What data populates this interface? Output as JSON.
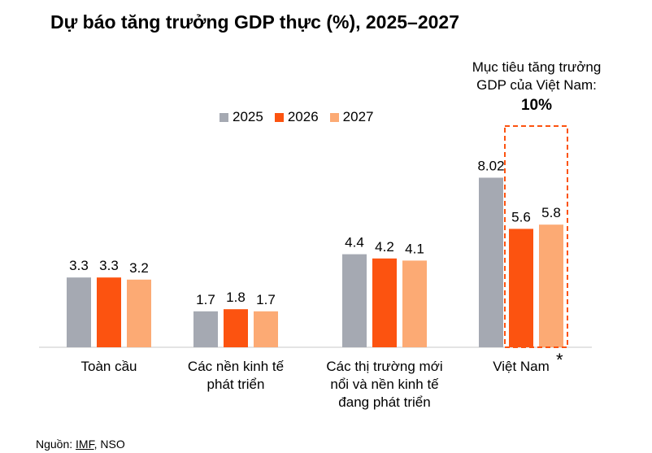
{
  "chart_data": {
    "type": "bar",
    "title": "Dự báo tăng trưởng GDP thực (%), 2025–2027",
    "categories": [
      [
        "Toàn cầu"
      ],
      [
        "Các nền kinh tế",
        "phát triển"
      ],
      [
        "Các thị trường mới",
        "nổi và nền kinh tế",
        "đang phát triển"
      ],
      [
        "Việt Nam"
      ]
    ],
    "series": [
      {
        "name": "2025",
        "color": "#a5a9b2",
        "values": [
          3.3,
          1.7,
          4.4,
          8.02
        ],
        "labels": [
          "3.3",
          "1.7",
          "4.4",
          "8.02"
        ]
      },
      {
        "name": "2026",
        "color": "#fc5310",
        "values": [
          3.3,
          1.8,
          4.2,
          5.6
        ],
        "labels": [
          "3.3",
          "1.8",
          "4.2",
          "5.6"
        ]
      },
      {
        "name": "2027",
        "color": "#fcaa74",
        "values": [
          3.2,
          1.7,
          4.1,
          5.8
        ],
        "labels": [
          "3.2",
          "1.7",
          "4.1",
          "5.8"
        ]
      }
    ],
    "ylim": [
      0,
      10
    ],
    "legend": "top-center",
    "annotation": {
      "lines": [
        "Mục tiêu tăng trưởng",
        "GDP của Việt Nam:"
      ],
      "value": "10%",
      "highlight_color": "#fc5310"
    },
    "vietnam_marker": "*"
  },
  "source": {
    "prefix": "Nguồn: ",
    "imf": "IMF",
    "rest": ", NSO"
  }
}
